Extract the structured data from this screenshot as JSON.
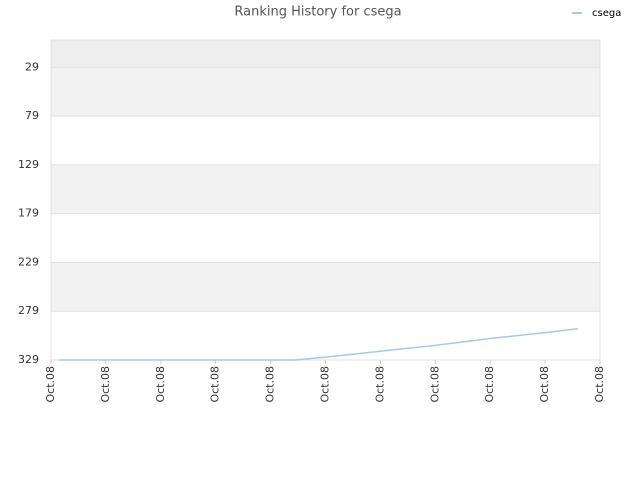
{
  "chart_data": {
    "type": "line",
    "title": "Ranking History for csega",
    "x": [
      0.15,
      1,
      2,
      3,
      4,
      4.45,
      5,
      6,
      7,
      8,
      9,
      9.6
    ],
    "series": [
      {
        "name": "csega",
        "color": "#a5c8ec",
        "values": [
          329,
          329,
          329,
          329,
          329,
          329,
          326,
          320,
          314,
          307,
          301,
          297
        ]
      }
    ],
    "xlim": [
      0,
      10
    ],
    "xticks": [
      {
        "value": 0,
        "label": "Oct.08"
      },
      {
        "value": 1,
        "label": "Oct.08"
      },
      {
        "value": 2,
        "label": "Oct.08"
      },
      {
        "value": 3,
        "label": "Oct.08"
      },
      {
        "value": 4,
        "label": "Oct.08"
      },
      {
        "value": 5,
        "label": "Oct.08"
      },
      {
        "value": 6,
        "label": "Oct.08"
      },
      {
        "value": 7,
        "label": "Oct.08"
      },
      {
        "value": 8,
        "label": "Oct.08"
      },
      {
        "value": 9,
        "label": "Oct.08"
      },
      {
        "value": 10,
        "label": "Oct.08"
      }
    ],
    "ylim": [
      1,
      329
    ],
    "y_inverted": true,
    "yticks": [
      29,
      79,
      129,
      179,
      229,
      279,
      329
    ],
    "grid": true,
    "legend": "top-right"
  }
}
